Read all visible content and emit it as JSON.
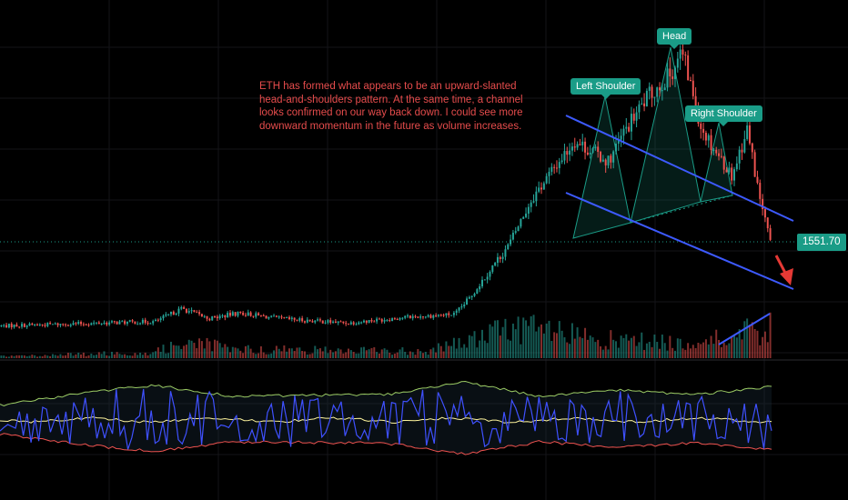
{
  "chart_data": {
    "type": "candlestick",
    "symbol": "ETH",
    "annotation": "ETH has formed what appears to be an upward-slanted head-and-shoulders pattern. At the same time, a channel looks confirmed on our way back down. I could see more downward momentum in the future as volume increases.",
    "pattern_labels": [
      "Left Shoulder",
      "Head",
      "Right Shoulder"
    ],
    "last_price": "1551.70",
    "colors": {
      "up": "#26a69a",
      "down": "#ef5350",
      "channel": "#3d5afe",
      "pattern_fill": "#1a9c87",
      "label_bg": "#1a9c87",
      "annotation_text": "#e64c4c",
      "arrow": "#e53935",
      "osc_main": "#3f51ff",
      "osc_upper": "#9ccc65",
      "osc_mid": "#fff59d",
      "osc_lower": "#ef5350"
    },
    "price_path": [
      [
        0,
        0.03
      ],
      [
        0.2,
        0.045
      ],
      [
        0.235,
        0.09
      ],
      [
        0.27,
        0.055
      ],
      [
        0.31,
        0.075
      ],
      [
        0.36,
        0.055
      ],
      [
        0.45,
        0.04
      ],
      [
        0.525,
        0.06
      ],
      [
        0.59,
        0.07
      ],
      [
        0.61,
        0.13
      ],
      [
        0.64,
        0.24
      ],
      [
        0.66,
        0.31
      ],
      [
        0.69,
        0.47
      ],
      [
        0.72,
        0.58
      ],
      [
        0.745,
        0.67
      ],
      [
        0.79,
        0.6
      ],
      [
        0.81,
        0.7
      ],
      [
        0.84,
        0.82
      ],
      [
        0.87,
        0.9
      ],
      [
        0.885,
        0.98
      ],
      [
        0.91,
        0.72
      ],
      [
        0.93,
        0.63
      ],
      [
        0.95,
        0.55
      ],
      [
        0.97,
        0.71
      ],
      [
        0.985,
        0.49
      ],
      [
        1.0,
        0.32
      ]
    ],
    "volume_level": [
      [
        0,
        0.03
      ],
      [
        0.2,
        0.1
      ],
      [
        0.24,
        0.3
      ],
      [
        0.3,
        0.15
      ],
      [
        0.55,
        0.12
      ],
      [
        0.61,
        0.3
      ],
      [
        0.67,
        0.55
      ],
      [
        0.72,
        0.42
      ],
      [
        0.8,
        0.3
      ],
      [
        0.9,
        0.25
      ],
      [
        0.96,
        0.4
      ],
      [
        1.0,
        0.55
      ]
    ],
    "osc_volatility": [
      [
        0,
        0.25
      ],
      [
        0.12,
        0.7
      ],
      [
        0.2,
        0.9
      ],
      [
        0.3,
        0.55
      ],
      [
        0.5,
        0.6
      ],
      [
        0.6,
        1.0
      ],
      [
        0.7,
        0.55
      ],
      [
        0.8,
        0.75
      ],
      [
        0.9,
        0.6
      ],
      [
        1.0,
        0.85
      ]
    ],
    "grid": true
  }
}
